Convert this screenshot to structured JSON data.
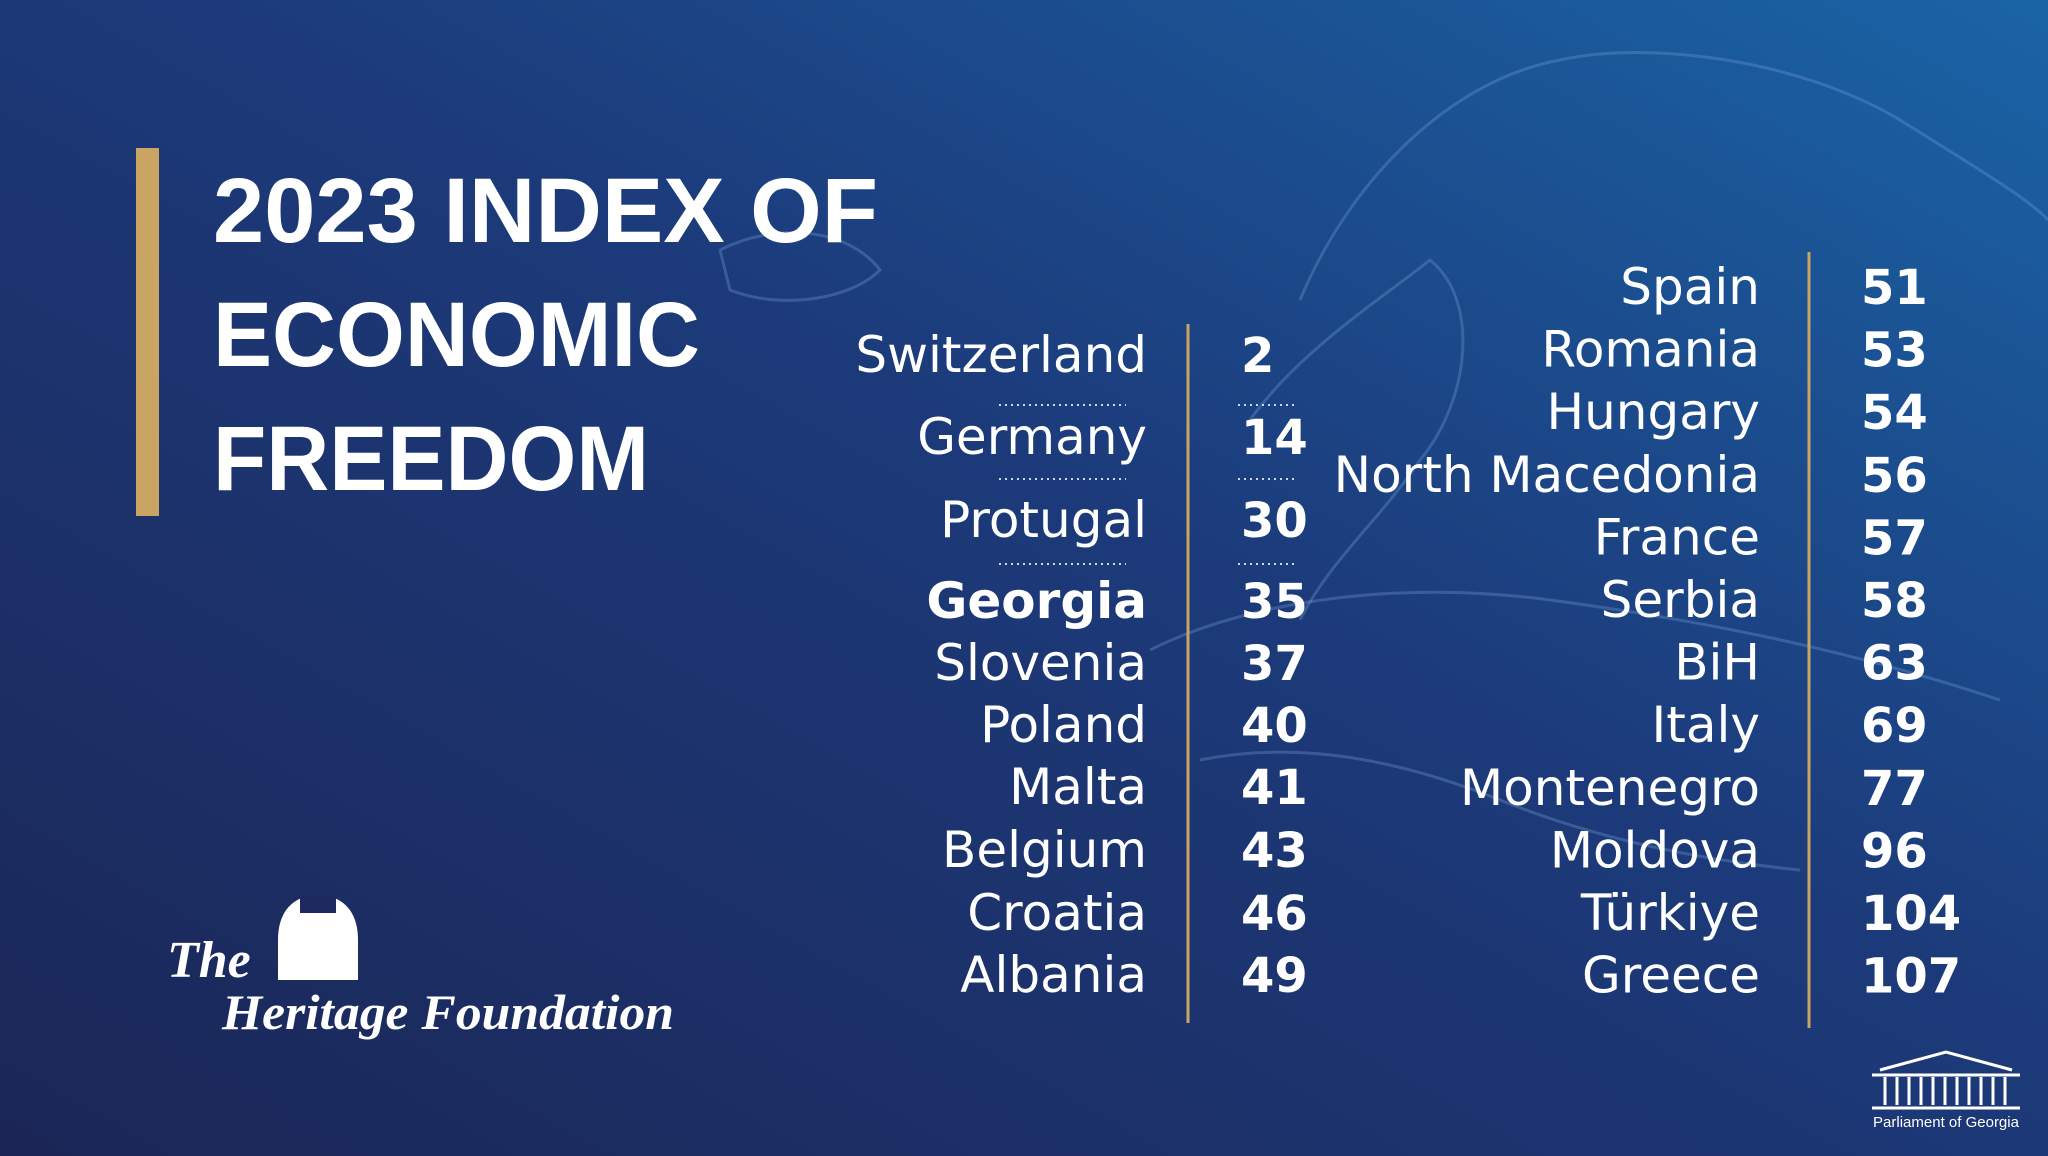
{
  "title": {
    "lines": [
      "2023 INDEX OF",
      "ECONOMIC",
      "FREEDOM"
    ]
  },
  "left_list": [
    {
      "name": "Switzerland",
      "rank": 2
    },
    {
      "name": "Germany",
      "rank": 14
    },
    {
      "name": "Protugal",
      "rank": 30
    },
    {
      "name": "Georgia",
      "rank": 35,
      "color": "#c9a463"
    },
    {
      "name": "Slovenia",
      "rank": 37
    },
    {
      "name": "Poland",
      "rank": 40
    },
    {
      "name": "Malta",
      "rank": 41
    },
    {
      "name": "Belgium",
      "rank": 43
    },
    {
      "name": "Croatia",
      "rank": 46
    },
    {
      "name": "Albania",
      "rank": 49
    }
  ],
  "right_list": [
    {
      "name": "Spain",
      "rank": 51
    },
    {
      "name": "Romania",
      "rank": 53
    },
    {
      "name": "Hungary",
      "rank": 54
    },
    {
      "name": "North Macedonia",
      "rank": 56
    },
    {
      "name": "France",
      "rank": 57
    },
    {
      "name": "Serbia",
      "rank": 58
    },
    {
      "name": "BiH",
      "rank": 63
    },
    {
      "name": "Italy",
      "rank": 69
    },
    {
      "name": "Montenegro",
      "rank": 77
    },
    {
      "name": "Moldova",
      "rank": 96
    },
    {
      "name": "Türkiye",
      "rank": 104
    },
    {
      "name": "Greece",
      "rank": 107
    }
  ],
  "logo": {
    "the": "The",
    "name": "Heritage Foundation"
  },
  "footer": {
    "parliament": "Parliament of Georgia"
  }
}
